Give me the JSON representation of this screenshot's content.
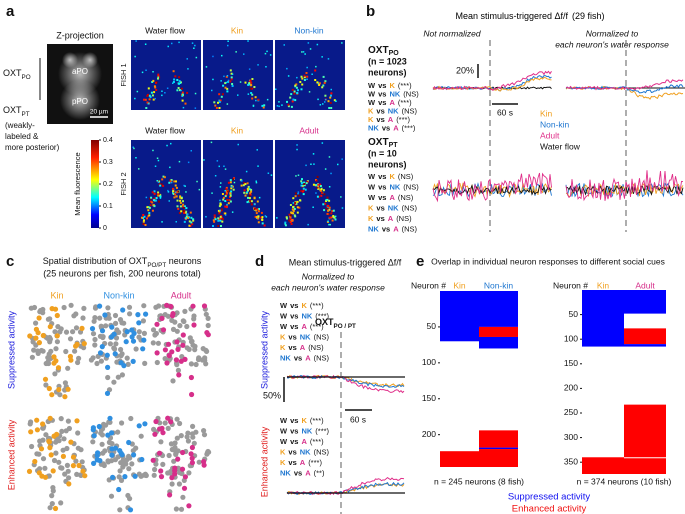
{
  "vs": "vs",
  "abbrev_colors": {
    "W": "#222222",
    "K": "#f0a020",
    "NK": "#1f77d0",
    "A": "#d62f8a"
  },
  "panel_a": {
    "letter": "a",
    "title": "Z-projection",
    "regions": [
      "aPO",
      "pPO"
    ],
    "scale_bar": "20 µm",
    "oxt_po": {
      "text": "OXT",
      "sub": "PO"
    },
    "oxt_pt": {
      "text": "OXT",
      "sub": "PT"
    },
    "oxt_pt_note": [
      "(weakly-",
      "labeled &",
      "more posterior)"
    ],
    "fish": [
      {
        "label": "FISH 1",
        "conditions": [
          "Water flow",
          "Kin",
          "Non-kin"
        ],
        "colors": [
          "#111111",
          "#f0a020",
          "#1f77d0"
        ]
      },
      {
        "label": "FISH 2",
        "conditions": [
          "Water flow",
          "Kin",
          "Adult"
        ],
        "colors": [
          "#111111",
          "#f0a020",
          "#d62f8a"
        ]
      }
    ],
    "colorbar": {
      "label": "Mean fluorescence",
      "lim": [
        0,
        0.4
      ],
      "ticks": [
        0,
        0.1,
        0.2,
        0.3,
        0.4
      ]
    }
  },
  "panel_b": {
    "letter": "b",
    "title": "Mean stimulus-triggered Δf/f",
    "subtitle": "(29 fish)",
    "view_left": "Not normalized",
    "view_right": [
      "Normalized to",
      "each neuron's water response"
    ],
    "groups": [
      {
        "label": {
          "text": "OXT",
          "sub": "PO"
        },
        "n": [
          "(n = 1023",
          "neurons)"
        ],
        "comparisons": [
          {
            "a": "W",
            "b": "K",
            "sig": "(***)"
          },
          {
            "a": "W",
            "b": "NK",
            "sig": "(NS)"
          },
          {
            "a": "W",
            "b": "A",
            "sig": "(***)"
          },
          {
            "a": "K",
            "b": "NK",
            "sig": "(NS)"
          },
          {
            "a": "K",
            "b": "A",
            "sig": "(***)"
          },
          {
            "a": "NK",
            "b": "A",
            "sig": "(***)"
          }
        ]
      },
      {
        "label": {
          "text": "OXT",
          "sub": "PT"
        },
        "n": [
          "(n = 10",
          "neurons)"
        ],
        "comparisons": [
          {
            "a": "W",
            "b": "K",
            "sig": "(NS)"
          },
          {
            "a": "W",
            "b": "NK",
            "sig": "(NS)"
          },
          {
            "a": "W",
            "b": "A",
            "sig": "(NS)"
          },
          {
            "a": "K",
            "b": "NK",
            "sig": "(NS)"
          },
          {
            "a": "K",
            "b": "A",
            "sig": "(NS)"
          },
          {
            "a": "NK",
            "b": "A",
            "sig": "(NS)"
          }
        ]
      }
    ],
    "scale_y": "20%",
    "scale_x": "60 s",
    "legend": [
      {
        "name": "Kin",
        "color": "#f0a020"
      },
      {
        "name": "Non-kin",
        "color": "#1f77d0"
      },
      {
        "name": "Adult",
        "color": "#e0308a"
      },
      {
        "name": "Water flow",
        "color": "#111111"
      }
    ]
  },
  "panel_c": {
    "letter": "c",
    "title": {
      "pre": "Spatial distribution of ",
      "text": "OXT",
      "sub": "PO/PT",
      "post": " neurons"
    },
    "subtitle": "(25 neurons per fish, 200 neurons total)",
    "columns": [
      {
        "name": "Kin",
        "color": "#f0a020"
      },
      {
        "name": "Non-kin",
        "color": "#2f8fe0"
      },
      {
        "name": "Adult",
        "color": "#d62f8a"
      }
    ],
    "rows": [
      {
        "name": "Suppressed activity",
        "color": "#1a1adc"
      },
      {
        "name": "Enhanced activity",
        "color": "#e02020"
      }
    ]
  },
  "panel_d": {
    "letter": "d",
    "title": "Mean stimulus-triggered Δf/f",
    "note": [
      "Normalized to",
      "each neuron's water response"
    ],
    "stim": {
      "text": "OXT",
      "sub": "PO / PT"
    },
    "scale_y": "50%",
    "scale_x": "60 s",
    "groups": [
      {
        "name": "Suppressed activity",
        "color": "#1a1adc",
        "comparisons": [
          {
            "a": "W",
            "b": "K",
            "sig": "(***)"
          },
          {
            "a": "W",
            "b": "NK",
            "sig": "(***)"
          },
          {
            "a": "W",
            "b": "A",
            "sig": "(***)"
          },
          {
            "a": "K",
            "b": "NK",
            "sig": "(NS)"
          },
          {
            "a": "K",
            "b": "A",
            "sig": "(NS)"
          },
          {
            "a": "NK",
            "b": "A",
            "sig": "(NS)"
          }
        ]
      },
      {
        "name": "Enhanced activity",
        "color": "#e02020",
        "comparisons": [
          {
            "a": "W",
            "b": "K",
            "sig": "(***)"
          },
          {
            "a": "W",
            "b": "NK",
            "sig": "(***)"
          },
          {
            "a": "W",
            "b": "A",
            "sig": "(***)"
          },
          {
            "a": "K",
            "b": "NK",
            "sig": "(NS)"
          },
          {
            "a": "K",
            "b": "A",
            "sig": "(***)"
          },
          {
            "a": "NK",
            "b": "A",
            "sig": "(**)"
          }
        ]
      }
    ]
  },
  "panel_e": {
    "letter": "e",
    "title": "Overlap in individual neuron responses to different social cues",
    "plots": [
      {
        "axis_label": "Neuron #",
        "ylim": [
          0,
          245
        ],
        "yticks": [
          50,
          100,
          150,
          200
        ],
        "note": "n = 245 neurons (8 fish)",
        "columns": [
          {
            "name": "Kin",
            "color": "#f0a020",
            "blocks": [
              {
                "start": 0,
                "end": 70,
                "color": "#0000ff"
              },
              {
                "start": 223,
                "end": 245,
                "color": "#ff0000"
              }
            ]
          },
          {
            "name": "Non-kin",
            "color": "#1f77d0",
            "blocks": [
              {
                "start": 0,
                "end": 50,
                "color": "#0000ff"
              },
              {
                "start": 50,
                "end": 64,
                "color": "#ff0000"
              },
              {
                "start": 64,
                "end": 80,
                "color": "#0000ff"
              },
              {
                "start": 194,
                "end": 218,
                "color": "#ff0000"
              },
              {
                "start": 218,
                "end": 220,
                "color": "#0000ff"
              },
              {
                "start": 220,
                "end": 245,
                "color": "#ff0000"
              }
            ]
          }
        ]
      },
      {
        "axis_label": "Neuron #",
        "ylim": [
          0,
          374
        ],
        "yticks": [
          50,
          100,
          150,
          200,
          250,
          300,
          350
        ],
        "note": "n = 374 neurons (10 fish)",
        "columns": [
          {
            "name": "Kin",
            "color": "#f0a020",
            "blocks": [
              {
                "start": 0,
                "end": 115,
                "color": "#0000ff"
              },
              {
                "start": 340,
                "end": 374,
                "color": "#ff0000"
              }
            ]
          },
          {
            "name": "Adult",
            "color": "#d62f8a",
            "blocks": [
              {
                "start": 0,
                "end": 48,
                "color": "#0000ff"
              },
              {
                "start": 78,
                "end": 110,
                "color": "#ff0000"
              },
              {
                "start": 110,
                "end": 115,
                "color": "#0000ff"
              },
              {
                "start": 233,
                "end": 340,
                "color": "#ff0000"
              },
              {
                "start": 342,
                "end": 374,
                "color": "#ff0000"
              }
            ]
          }
        ]
      }
    ],
    "legend": [
      {
        "name": "Suppressed activity",
        "color": "#1010f0"
      },
      {
        "name": "Enhanced activity",
        "color": "#f01010"
      }
    ]
  }
}
